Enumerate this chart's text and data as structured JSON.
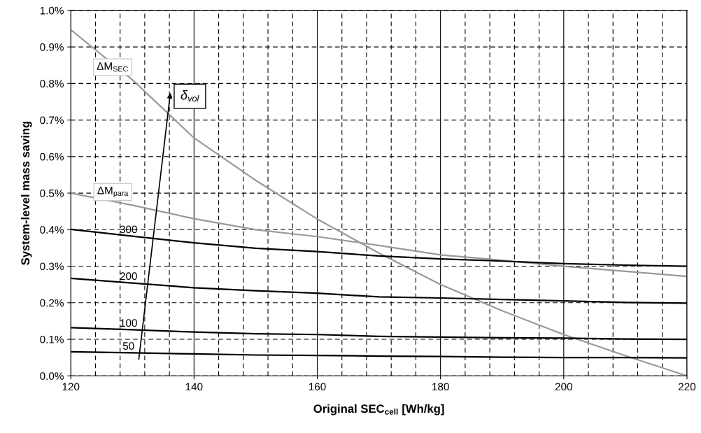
{
  "chart_data": {
    "type": "line",
    "xlabel": "Original SEC$_{cell}$ [Wh/kg]",
    "ylabel": "System-level mass saving",
    "x": [
      120,
      130,
      140,
      150,
      160,
      170,
      180,
      190,
      200,
      210,
      220
    ],
    "series": [
      {
        "name": "ΔM$_{SEC}$",
        "color": "#999999",
        "values": [
          0.947,
          0.81,
          0.651,
          0.535,
          0.429,
          0.336,
          0.25,
          0.178,
          0.113,
          0.055,
          0.0
        ]
      },
      {
        "name": "ΔM$_{para}$",
        "color": "#999999",
        "values": [
          0.5,
          0.467,
          0.43,
          0.4,
          0.381,
          0.357,
          0.331,
          0.316,
          0.3,
          0.286,
          0.272
        ]
      },
      {
        "name": "300",
        "color": "#000000",
        "values": [
          0.401,
          0.382,
          0.364,
          0.349,
          0.34,
          0.328,
          0.32,
          0.314,
          0.307,
          0.303,
          0.3
        ]
      },
      {
        "name": "200",
        "color": "#000000",
        "values": [
          0.267,
          0.254,
          0.241,
          0.233,
          0.226,
          0.216,
          0.213,
          0.209,
          0.205,
          0.201,
          0.199
        ]
      },
      {
        "name": "100",
        "color": "#000000",
        "values": [
          0.132,
          0.126,
          0.12,
          0.115,
          0.113,
          0.108,
          0.106,
          0.104,
          0.103,
          0.101,
          0.1
        ]
      },
      {
        "name": "50",
        "color": "#000000",
        "values": [
          0.066,
          0.063,
          0.06,
          0.057,
          0.056,
          0.054,
          0.053,
          0.051,
          0.05,
          0.05,
          0.049
        ]
      }
    ],
    "annotations": [
      "δ$_{vol}$"
    ],
    "xlim": [
      120,
      220
    ],
    "xticks": [
      120,
      140,
      160,
      180,
      200,
      220
    ],
    "ylim": [
      0,
      1.0
    ],
    "yticks": [
      {
        "value": 0,
        "label": "0.0%"
      },
      {
        "value": 0.1,
        "label": "0.1%"
      },
      {
        "value": 0.2,
        "label": "0.2%"
      },
      {
        "value": 0.3,
        "label": "0.3%"
      },
      {
        "value": 0.4,
        "label": "0.4%"
      },
      {
        "value": 0.5,
        "label": "0.5%"
      },
      {
        "value": 0.6,
        "label": "0.6%"
      },
      {
        "value": 0.7,
        "label": "0.7%"
      },
      {
        "value": 0.8,
        "label": "0.8%"
      },
      {
        "value": 0.9,
        "label": "0.9%"
      },
      {
        "value": 1.0,
        "label": "1.0%"
      }
    ],
    "grid": true,
    "legend": false,
    "marker": "none",
    "line_style": "solid"
  }
}
